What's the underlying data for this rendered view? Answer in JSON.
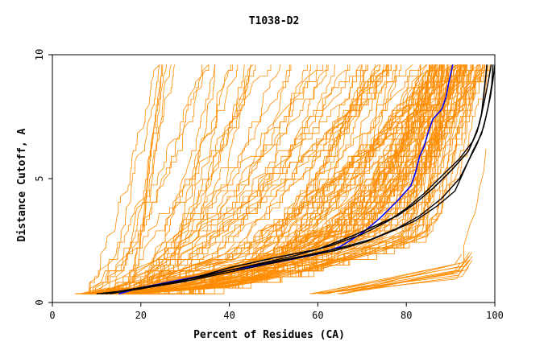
{
  "chart_data": {
    "type": "line",
    "title": "T1038-D2",
    "xlabel": "Percent of Residues (CA)",
    "ylabel": "Distance Cutoff, A",
    "xlim": [
      0,
      100
    ],
    "ylim": [
      0,
      10
    ],
    "x_ticks": [
      0,
      20,
      40,
      60,
      80,
      100
    ],
    "y_ticks": [
      0,
      5,
      10
    ],
    "grid": false,
    "legend": "none",
    "colors": {
      "background_models": "#ff8c00",
      "highlight_blue": "#0000ff",
      "highlight_black": "#000000"
    },
    "series": [
      {
        "color": "#0000ff",
        "width": 1.6,
        "points": [
          [
            15,
            0.35
          ],
          [
            20,
            0.6
          ],
          [
            30,
            0.95
          ],
          [
            40,
            1.3
          ],
          [
            50,
            1.6
          ],
          [
            60,
            1.95
          ],
          [
            65,
            2.25
          ],
          [
            70,
            2.8
          ],
          [
            74,
            3.4
          ],
          [
            78,
            4.1
          ],
          [
            81,
            4.7
          ],
          [
            82,
            5.2
          ],
          [
            83,
            5.9
          ],
          [
            84,
            6.3
          ],
          [
            85,
            6.9
          ],
          [
            86,
            7.4
          ],
          [
            88,
            7.8
          ],
          [
            89,
            8.3
          ],
          [
            89.5,
            8.8
          ],
          [
            90,
            9.2
          ],
          [
            90.5,
            9.6
          ]
        ]
      },
      {
        "color": "#000000",
        "width": 1.6,
        "points": [
          [
            12,
            0.35
          ],
          [
            20,
            0.6
          ],
          [
            30,
            0.9
          ],
          [
            40,
            1.4
          ],
          [
            50,
            1.8
          ],
          [
            60,
            2.15
          ],
          [
            68,
            2.7
          ],
          [
            73,
            3.1
          ],
          [
            78,
            3.5
          ],
          [
            82,
            4.0
          ],
          [
            86,
            4.6
          ],
          [
            90,
            5.3
          ],
          [
            94,
            6.1
          ],
          [
            96,
            6.9
          ],
          [
            97,
            7.6
          ],
          [
            97.5,
            8.4
          ],
          [
            98,
            9.2
          ],
          [
            98.2,
            9.6
          ]
        ]
      },
      {
        "color": "#000000",
        "width": 1.4,
        "points": [
          [
            13,
            0.35
          ],
          [
            22,
            0.65
          ],
          [
            34,
            1.05
          ],
          [
            45,
            1.5
          ],
          [
            55,
            1.9
          ],
          [
            63,
            2.3
          ],
          [
            70,
            2.75
          ],
          [
            76,
            3.3
          ],
          [
            80,
            3.8
          ],
          [
            84,
            4.4
          ],
          [
            88,
            5.1
          ],
          [
            92,
            5.8
          ],
          [
            95,
            6.5
          ],
          [
            96.5,
            7.2
          ],
          [
            97.5,
            8.0
          ],
          [
            98.5,
            8.9
          ],
          [
            99.2,
            9.6
          ]
        ]
      },
      {
        "color": "#000000",
        "width": 1.4,
        "points": [
          [
            11,
            0.35
          ],
          [
            20,
            0.55
          ],
          [
            32,
            1.0
          ],
          [
            44,
            1.45
          ],
          [
            56,
            1.85
          ],
          [
            65,
            2.2
          ],
          [
            72,
            2.55
          ],
          [
            78,
            3.0
          ],
          [
            83,
            3.5
          ],
          [
            88,
            4.2
          ],
          [
            92,
            5.0
          ],
          [
            94,
            5.7
          ],
          [
            96,
            6.4
          ],
          [
            97.5,
            7.1
          ],
          [
            98.5,
            7.9
          ],
          [
            99.3,
            8.8
          ],
          [
            99.6,
            9.6
          ]
        ]
      },
      {
        "color": "#000000",
        "width": 1.4,
        "points": [
          [
            10,
            0.35
          ],
          [
            18,
            0.5
          ],
          [
            30,
            0.85
          ],
          [
            42,
            1.3
          ],
          [
            54,
            1.75
          ],
          [
            64,
            2.1
          ],
          [
            71,
            2.45
          ],
          [
            77,
            2.9
          ],
          [
            82,
            3.3
          ],
          [
            87,
            3.9
          ],
          [
            91,
            4.5
          ],
          [
            93,
            5.3
          ],
          [
            95,
            6.1
          ],
          [
            97,
            6.8
          ],
          [
            98,
            7.5
          ],
          [
            99,
            8.3
          ],
          [
            99.6,
            9.0
          ],
          [
            100,
            9.6
          ]
        ]
      }
    ]
  }
}
